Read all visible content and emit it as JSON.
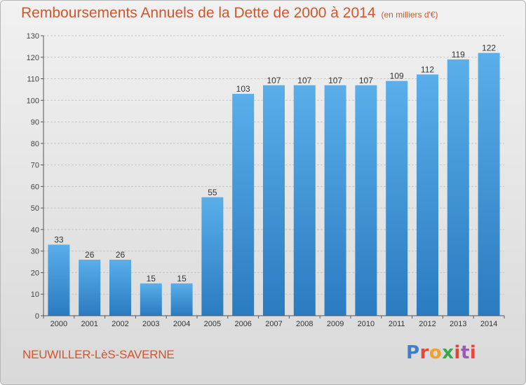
{
  "header": {
    "title": "Remboursements Annuels de la Dette de 2000 à 2014",
    "unit": "(en milliers d'€)"
  },
  "footer": {
    "commune": "NEUWILLER-LèS-SAVERNE",
    "logo": "Proxiti"
  },
  "colors": {
    "bar_light": "#5aaeea",
    "bar_dark": "#2a7bc0",
    "title": "#d1562a",
    "grid": "#c8c8c8"
  },
  "chart_data": {
    "type": "bar",
    "title": "Remboursements Annuels de la Dette de 2000 à 2014",
    "xlabel": "",
    "ylabel": "",
    "categories": [
      "2000",
      "2001",
      "2002",
      "2003",
      "2004",
      "2005",
      "2006",
      "2007",
      "2008",
      "2009",
      "2010",
      "2011",
      "2012",
      "2013",
      "2014"
    ],
    "values": [
      33,
      26,
      26,
      15,
      15,
      55,
      103,
      107,
      107,
      107,
      107,
      109,
      112,
      119,
      122
    ],
    "ylim": [
      0,
      130
    ],
    "yticks": [
      0,
      10,
      20,
      30,
      40,
      50,
      60,
      70,
      80,
      90,
      100,
      110,
      120,
      130
    ],
    "grid": true,
    "data_labels": true
  }
}
